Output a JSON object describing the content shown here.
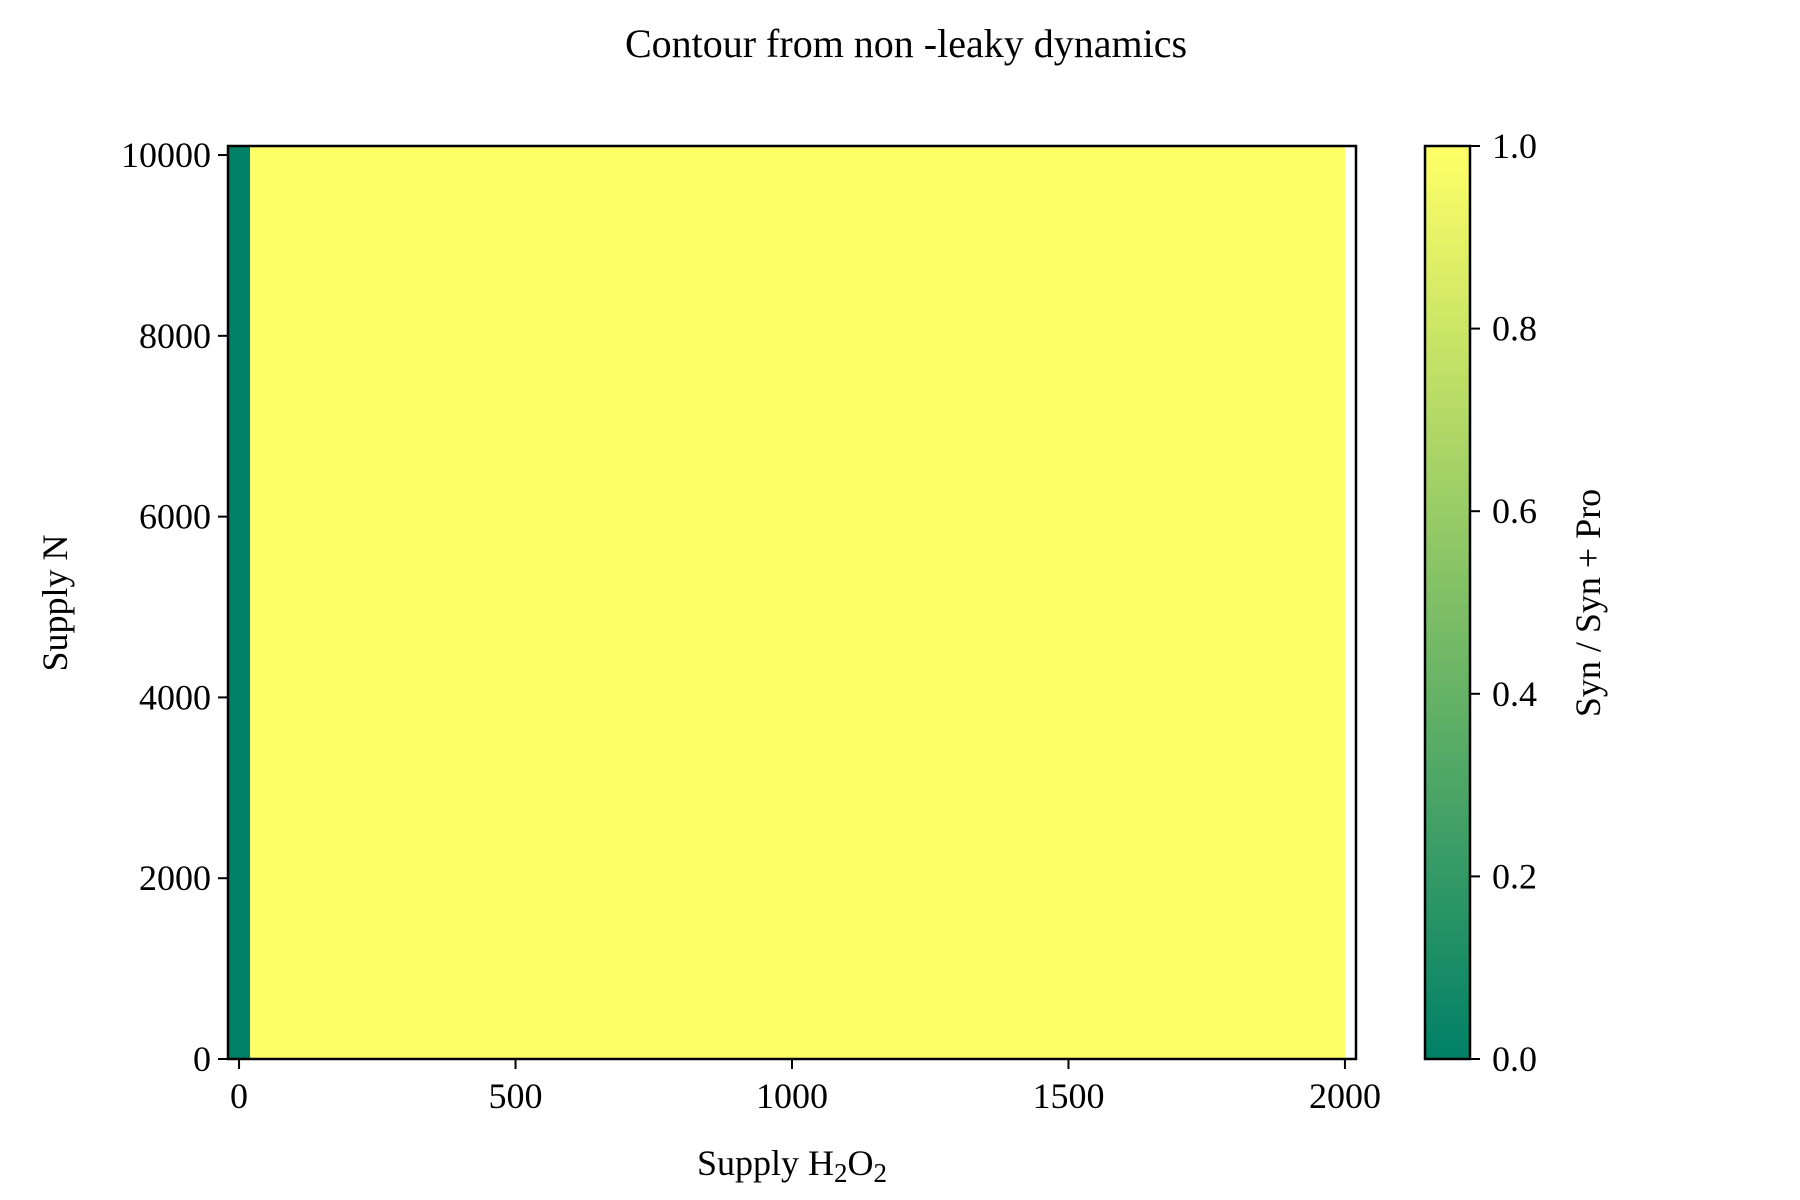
{
  "chart_data": {
    "type": "heatmap",
    "title": "Contour from non -leaky dynamics",
    "xlabel": {
      "base": "Supply H",
      "sub1": "2",
      "mid": "O",
      "sub2": "2"
    },
    "ylabel": "Supply N",
    "xlim": [
      -20,
      2020
    ],
    "ylim": [
      0,
      10100
    ],
    "x_ticks": [
      0,
      500,
      1000,
      1500,
      2000
    ],
    "x_tick_labels": [
      "0",
      "500",
      "1000",
      "1500",
      "2000"
    ],
    "y_ticks": [
      0,
      2000,
      4000,
      6000,
      8000,
      10000
    ],
    "y_tick_labels": [
      "0",
      "2000",
      "4000",
      "6000",
      "8000",
      "10000"
    ],
    "regions": [
      {
        "x_range": [
          -20,
          20
        ],
        "y_range": [
          0,
          10100
        ],
        "value": 0.0
      },
      {
        "x_range": [
          20,
          2000
        ],
        "y_range": [
          0,
          10100
        ],
        "value": 1.0
      }
    ],
    "colorbar": {
      "label": "Syn / Syn + Pro",
      "range": [
        0.0,
        1.0
      ],
      "ticks": [
        0.0,
        0.2,
        0.4,
        0.6,
        0.8,
        1.0
      ],
      "tick_labels": [
        "0.0",
        "0.2",
        "0.4",
        "0.6",
        "0.8",
        "1.0"
      ],
      "colormap": "summer",
      "color_low": "#008066",
      "color_high": "#ffff66"
    },
    "grid": false
  }
}
